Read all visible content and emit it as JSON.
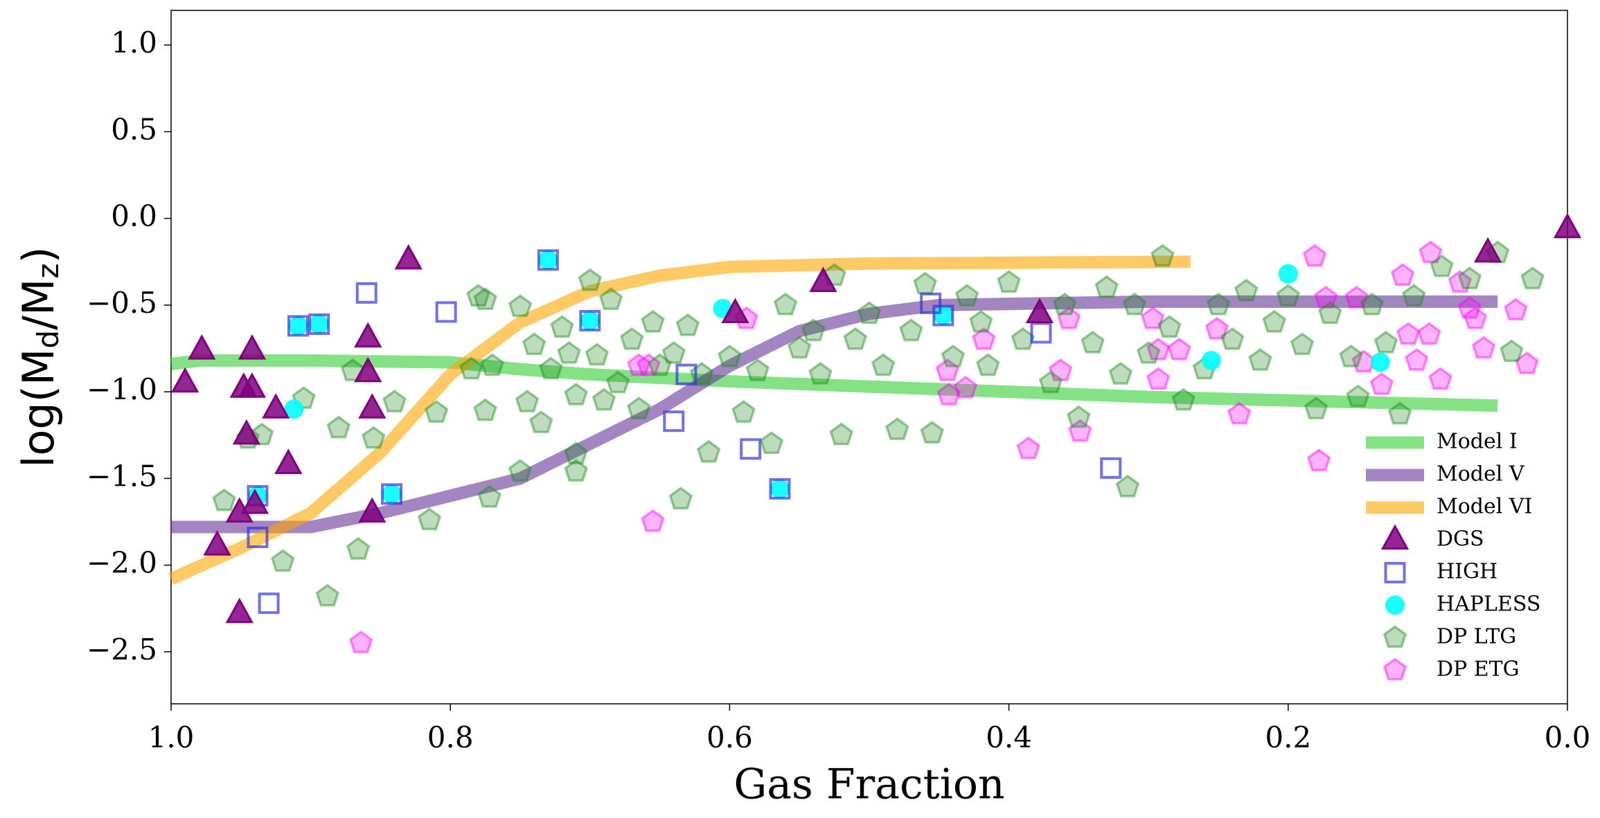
{
  "chart_data": {
    "type": "scatter",
    "xlabel": "Gas Fraction",
    "ylabel": [
      "log(M",
      "d",
      "/M",
      "z",
      ")"
    ],
    "xlim": [
      1.0,
      0.0
    ],
    "ylim": [
      -2.8,
      1.2
    ],
    "xticks": [
      {
        "value": 1,
        "label": "1.0"
      },
      0.8,
      0.6,
      0.4,
      0.2,
      {
        "value": 0,
        "label": "0.0"
      }
    ],
    "yticks": [
      {
        "value": 1,
        "label": "1.0"
      },
      {
        "value": 0.5,
        "label": "0.5"
      },
      {
        "value": 0,
        "label": "0.0"
      },
      {
        "value": -0.5,
        "label": "−0.5"
      },
      {
        "value": -1,
        "label": "−1.0"
      },
      {
        "value": -1.5,
        "label": "−1.5"
      },
      {
        "value": -2,
        "label": "−2.0"
      },
      {
        "value": -2.5,
        "label": "−2.5"
      }
    ],
    "grid": false,
    "legend": "lower right",
    "series": [
      {
        "name": "Model I",
        "color": "#32cd32",
        "marker": "line",
        "x": [
          1.0,
          0.98,
          0.9,
          0.8,
          0.75,
          0.7,
          0.6,
          0.5,
          0.4,
          0.3,
          0.2,
          0.1,
          0.05
        ],
        "y": [
          -0.84,
          -0.82,
          -0.82,
          -0.83,
          -0.87,
          -0.9,
          -0.94,
          -0.97,
          -1.0,
          -1.03,
          -1.05,
          -1.07,
          -1.08
        ]
      },
      {
        "name": "Model V",
        "color": "#663399",
        "marker": "line",
        "x": [
          1.0,
          0.9,
          0.85,
          0.8,
          0.75,
          0.7,
          0.65,
          0.6,
          0.55,
          0.5,
          0.45,
          0.3,
          0.05
        ],
        "y": [
          -1.78,
          -1.78,
          -1.7,
          -1.6,
          -1.5,
          -1.3,
          -1.1,
          -0.85,
          -0.65,
          -0.55,
          -0.5,
          -0.48,
          -0.48
        ]
      },
      {
        "name": "Model VI",
        "color": "#ffa500",
        "marker": "line",
        "x": [
          1.0,
          0.95,
          0.9,
          0.85,
          0.8,
          0.75,
          0.7,
          0.65,
          0.6,
          0.5,
          0.27
        ],
        "y": [
          -2.08,
          -1.9,
          -1.7,
          -1.35,
          -0.9,
          -0.6,
          -0.42,
          -0.33,
          -0.28,
          -0.26,
          -0.25
        ]
      },
      {
        "name": "DGS",
        "color": "#800080",
        "marker": "triangle",
        "x": [
          0.99,
          0.978,
          0.942,
          0.948,
          0.942,
          0.946,
          0.925,
          0.916,
          0.94,
          0.951,
          0.967,
          0.951,
          0.859,
          0.859,
          0.856,
          0.856,
          0.83,
          0.596,
          0.533,
          0.378,
          0.057,
          0.0
        ],
        "y": [
          -0.95,
          -0.76,
          -0.76,
          -0.98,
          -0.98,
          -1.25,
          -1.1,
          -1.42,
          -1.65,
          -1.7,
          -1.89,
          -2.28,
          -0.69,
          -0.89,
          -1.1,
          -1.7,
          -0.24,
          -0.55,
          -0.37,
          -0.55,
          -0.2,
          -0.06
        ]
      },
      {
        "name": "HIGH",
        "color": "#3333dd",
        "marker": "square",
        "x": [
          0.86,
          0.803,
          0.909,
          0.894,
          0.73,
          0.7,
          0.938,
          0.938,
          0.93,
          0.842,
          0.631,
          0.64,
          0.585,
          0.564,
          0.456,
          0.447,
          0.377,
          0.327
        ],
        "y": [
          -0.43,
          -0.54,
          -0.62,
          -0.61,
          -0.24,
          -0.59,
          -1.6,
          -1.84,
          -2.22,
          -1.59,
          -0.9,
          -1.17,
          -1.33,
          -1.56,
          -0.49,
          -0.56,
          -0.66,
          -1.44
        ]
      },
      {
        "name": "HAPLESS",
        "color": "#00ffff",
        "marker": "circle",
        "x": [
          0.912,
          0.909,
          0.894,
          0.73,
          0.7,
          0.938,
          0.842,
          0.564,
          0.605,
          0.447,
          0.2,
          0.134,
          0.255
        ],
        "y": [
          -1.1,
          -0.62,
          -0.61,
          -0.24,
          -0.59,
          -1.6,
          -1.59,
          -1.56,
          -0.52,
          -0.56,
          -0.32,
          -0.83,
          -0.82
        ]
      },
      {
        "name": "DP LTG",
        "color": "#228b22",
        "marker": "pentagon",
        "x": [
          0.962,
          0.945,
          0.935,
          0.92,
          0.905,
          0.888,
          0.88,
          0.87,
          0.866,
          0.855,
          0.84,
          0.815,
          0.81,
          0.785,
          0.78,
          0.775,
          0.775,
          0.772,
          0.77,
          0.75,
          0.745,
          0.75,
          0.74,
          0.735,
          0.728,
          0.72,
          0.715,
          0.71,
          0.71,
          0.71,
          0.7,
          0.695,
          0.69,
          0.685,
          0.68,
          0.67,
          0.665,
          0.655,
          0.65,
          0.64,
          0.635,
          0.63,
          0.62,
          0.615,
          0.6,
          0.59,
          0.58,
          0.57,
          0.56,
          0.55,
          0.54,
          0.535,
          0.525,
          0.52,
          0.51,
          0.5,
          0.49,
          0.48,
          0.47,
          0.46,
          0.455,
          0.44,
          0.43,
          0.42,
          0.415,
          0.4,
          0.39,
          0.37,
          0.36,
          0.35,
          0.34,
          0.33,
          0.32,
          0.31,
          0.3,
          0.29,
          0.285,
          0.275,
          0.26,
          0.25,
          0.24,
          0.23,
          0.22,
          0.21,
          0.2,
          0.19,
          0.18,
          0.17,
          0.155,
          0.15,
          0.14,
          0.13,
          0.12,
          0.11,
          0.09,
          0.07,
          0.05,
          0.04,
          0.025,
          0.315
        ],
        "y": [
          -1.63,
          -1.27,
          -1.25,
          -1.98,
          -1.04,
          -2.18,
          -1.21,
          -0.88,
          -1.91,
          -1.27,
          -1.06,
          -1.74,
          -1.12,
          -0.87,
          -0.45,
          -0.47,
          -1.11,
          -1.61,
          -0.85,
          -1.46,
          -1.06,
          -0.51,
          -0.73,
          -1.18,
          -0.87,
          -0.63,
          -0.78,
          -1.02,
          -1.36,
          -1.46,
          -0.36,
          -0.79,
          -1.05,
          -0.47,
          -0.95,
          -0.7,
          -1.1,
          -0.6,
          -0.85,
          -0.78,
          -1.62,
          -0.62,
          -0.9,
          -1.35,
          -0.8,
          -1.12,
          -0.88,
          -1.3,
          -0.5,
          -0.75,
          -0.65,
          -0.9,
          -0.33,
          -1.25,
          -0.7,
          -0.55,
          -0.85,
          -1.22,
          -0.65,
          -0.38,
          -1.24,
          -0.8,
          -0.45,
          -0.6,
          -0.85,
          -0.37,
          -0.7,
          -0.95,
          -0.5,
          -1.15,
          -0.72,
          -0.4,
          -0.9,
          -0.5,
          -0.78,
          -0.22,
          -0.63,
          -1.05,
          -0.87,
          -0.5,
          -0.7,
          -0.42,
          -0.82,
          -0.6,
          -0.45,
          -0.73,
          -1.1,
          -0.55,
          -0.8,
          -1.03,
          -0.5,
          -0.72,
          -1.13,
          -0.45,
          -0.28,
          -0.35,
          -0.2,
          -0.77,
          -0.35,
          -1.55
        ]
      },
      {
        "name": "DP ETG",
        "color": "#ff00ff",
        "marker": "pentagon",
        "x": [
          0.655,
          0.864,
          0.665,
          0.658,
          0.588,
          0.444,
          0.443,
          0.431,
          0.418,
          0.386,
          0.363,
          0.357,
          0.349,
          0.297,
          0.293,
          0.293,
          0.278,
          0.251,
          0.235,
          0.181,
          0.178,
          0.173,
          0.151,
          0.146,
          0.133,
          0.118,
          0.114,
          0.108,
          0.099,
          0.098,
          0.091,
          0.077,
          0.07,
          0.066,
          0.06,
          0.037,
          0.029
        ],
        "y": [
          -1.75,
          -2.45,
          -0.85,
          -0.85,
          -0.58,
          -0.88,
          -1.02,
          -0.98,
          -0.7,
          -1.33,
          -0.88,
          -0.58,
          -1.23,
          -0.58,
          -0.76,
          -0.93,
          -0.76,
          -0.64,
          -1.13,
          -0.22,
          -1.4,
          -0.46,
          -0.46,
          -0.83,
          -0.96,
          -0.33,
          -0.67,
          -0.82,
          -0.67,
          -0.2,
          -0.93,
          -0.37,
          -0.52,
          -0.58,
          -0.75,
          -0.53,
          -0.84
        ]
      }
    ]
  }
}
